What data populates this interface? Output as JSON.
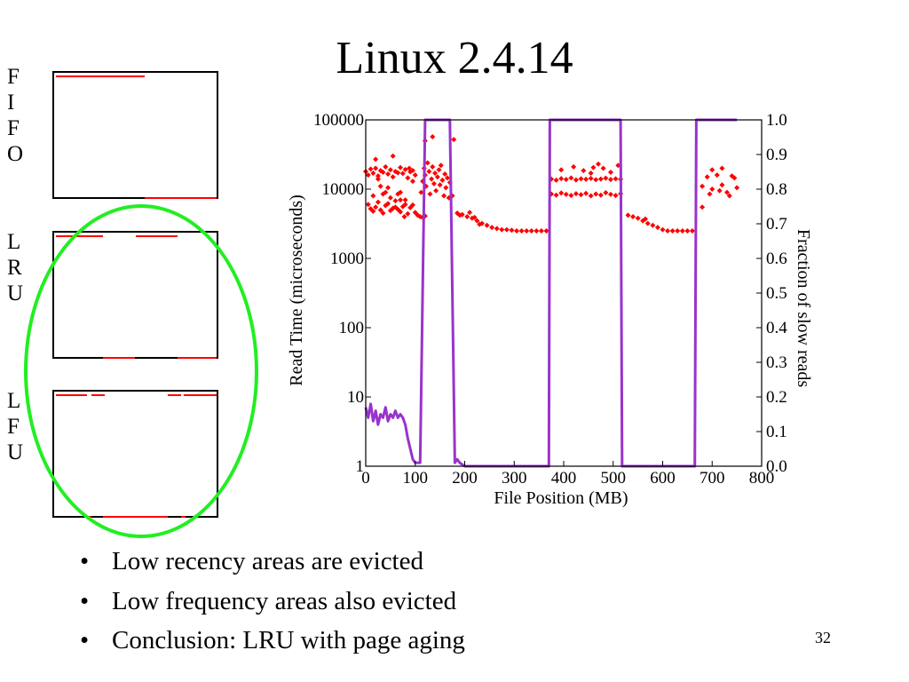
{
  "slide": {
    "title": "Linux 2.4.14",
    "page_number": "32"
  },
  "policies": [
    {
      "letters": [
        "F",
        "I",
        "F",
        "O"
      ],
      "name": "FIFO",
      "segments": [
        [
          0.0,
          0.01,
          0.56
        ],
        [
          0.98,
          0.56,
          1.0
        ]
      ]
    },
    {
      "letters": [
        "L",
        "R",
        "U"
      ],
      "name": "LRU",
      "segments": [
        [
          0.0,
          0.01,
          0.3
        ],
        [
          0.0,
          0.5,
          0.76
        ],
        [
          0.98,
          0.3,
          0.5
        ],
        [
          0.98,
          0.76,
          1.0
        ]
      ]
    },
    {
      "letters": [
        "L",
        "F",
        "U"
      ],
      "name": "LFU",
      "segments": [
        [
          0.0,
          0.01,
          0.2
        ],
        [
          0.0,
          0.23,
          0.31
        ],
        [
          0.0,
          0.7,
          0.78
        ],
        [
          0.0,
          0.8,
          1.0
        ],
        [
          0.98,
          0.2,
          0.23
        ],
        [
          0.98,
          0.3,
          0.7
        ],
        [
          0.98,
          0.78,
          0.81
        ]
      ]
    }
  ],
  "bullets": [
    "Low recency areas are evicted",
    "Low frequency areas also evicted",
    "Conclusion:  LRU with page aging"
  ],
  "colors": {
    "scatter": "#ff0000",
    "fraction_line": "#9933cc",
    "highlight_ellipse": "#22ee22"
  },
  "chart_data": {
    "type": "scatter",
    "xlabel": "File Position (MB)",
    "ylabel": "Read Time (microseconds)",
    "y2label": "Fraction of slow reads",
    "xlim": [
      0,
      800
    ],
    "ylim": [
      1,
      100000
    ],
    "y_scale": "log",
    "y2lim": [
      0,
      1
    ],
    "x_ticks": [
      "0",
      "100",
      "200",
      "300",
      "400",
      "500",
      "600",
      "700",
      "800"
    ],
    "y_ticks": [
      "1",
      "10",
      "100",
      "1000",
      "10000",
      "100000"
    ],
    "y2_ticks": [
      "0.0",
      "0.1",
      "0.2",
      "0.3",
      "0.4",
      "0.5",
      "0.6",
      "0.7",
      "0.8",
      "0.9",
      "1.0"
    ],
    "grid": false,
    "legend": "none",
    "series": [
      {
        "kind": "scatter",
        "points": [
          [
            0,
            18000
          ],
          [
            5,
            16000
          ],
          [
            10,
            19500
          ],
          [
            15,
            17000
          ],
          [
            20,
            20000
          ],
          [
            25,
            15500
          ],
          [
            30,
            18500
          ],
          [
            35,
            17500
          ],
          [
            40,
            21000
          ],
          [
            45,
            16500
          ],
          [
            50,
            19000
          ],
          [
            55,
            15000
          ],
          [
            60,
            18000
          ],
          [
            65,
            17200
          ],
          [
            70,
            20500
          ],
          [
            75,
            16800
          ],
          [
            80,
            19200
          ],
          [
            85,
            14500
          ],
          [
            90,
            17800
          ],
          [
            95,
            18600
          ],
          [
            100,
            16000
          ],
          [
            30,
            11000
          ],
          [
            45,
            10500
          ],
          [
            60,
            5500
          ],
          [
            70,
            9000
          ],
          [
            80,
            7000
          ],
          [
            95,
            13000
          ],
          [
            78,
            4000
          ],
          [
            120,
            50000
          ],
          [
            135,
            57000
          ],
          [
            178,
            52000
          ],
          [
            112,
            9000
          ],
          [
            115,
            13000
          ],
          [
            118,
            20000
          ],
          [
            120,
            16000
          ],
          [
            122,
            11000
          ],
          [
            125,
            24000
          ],
          [
            128,
            18000
          ],
          [
            130,
            8500
          ],
          [
            133,
            14000
          ],
          [
            135,
            21000
          ],
          [
            138,
            12000
          ],
          [
            140,
            17000
          ],
          [
            142,
            9500
          ],
          [
            145,
            15000
          ],
          [
            148,
            19000
          ],
          [
            150,
            11500
          ],
          [
            152,
            22000
          ],
          [
            155,
            13500
          ],
          [
            158,
            8000
          ],
          [
            160,
            16500
          ],
          [
            162,
            10500
          ],
          [
            165,
            14500
          ],
          [
            168,
            7500
          ],
          [
            170,
            12500
          ],
          [
            175,
            8000
          ],
          [
            375,
            14000
          ],
          [
            385,
            13500
          ],
          [
            395,
            14200
          ],
          [
            405,
            13800
          ],
          [
            415,
            14500
          ],
          [
            425,
            13600
          ],
          [
            435,
            14100
          ],
          [
            445,
            13900
          ],
          [
            455,
            14300
          ],
          [
            465,
            13700
          ],
          [
            475,
            14000
          ],
          [
            485,
            14400
          ],
          [
            495,
            13800
          ],
          [
            505,
            14100
          ],
          [
            515,
            13900
          ],
          [
            375,
            8500
          ],
          [
            385,
            8200
          ],
          [
            395,
            8800
          ],
          [
            405,
            8400
          ],
          [
            415,
            8100
          ],
          [
            425,
            8600
          ],
          [
            435,
            8300
          ],
          [
            445,
            8700
          ],
          [
            455,
            8000
          ],
          [
            465,
            8500
          ],
          [
            475,
            8200
          ],
          [
            485,
            8900
          ],
          [
            495,
            8400
          ],
          [
            505,
            8100
          ],
          [
            515,
            8600
          ],
          [
            395,
            19000
          ],
          [
            420,
            21000
          ],
          [
            440,
            18500
          ],
          [
            455,
            17000
          ],
          [
            480,
            20000
          ],
          [
            495,
            17500
          ],
          [
            510,
            22000
          ],
          [
            470,
            23000
          ],
          [
            460,
            20500
          ],
          [
            680,
            11000
          ],
          [
            690,
            15000
          ],
          [
            700,
            10000
          ],
          [
            710,
            16000
          ],
          [
            720,
            11500
          ],
          [
            730,
            9000
          ],
          [
            740,
            15500
          ],
          [
            750,
            10500
          ],
          [
            695,
            8500
          ],
          [
            715,
            9500
          ],
          [
            735,
            8000
          ],
          [
            745,
            14500
          ],
          [
            700,
            19000
          ],
          [
            720,
            20000
          ],
          [
            680,
            5500
          ],
          [
            5,
            6000
          ],
          [
            10,
            5200
          ],
          [
            15,
            4800
          ],
          [
            20,
            5500
          ],
          [
            25,
            6500
          ],
          [
            30,
            5000
          ],
          [
            35,
            4500
          ],
          [
            40,
            5800
          ],
          [
            45,
            6200
          ],
          [
            50,
            4900
          ],
          [
            55,
            5300
          ],
          [
            60,
            6800
          ],
          [
            65,
            5100
          ],
          [
            70,
            4700
          ],
          [
            75,
            5600
          ],
          [
            80,
            6000
          ],
          [
            85,
            4400
          ],
          [
            90,
            5400
          ],
          [
            95,
            5900
          ],
          [
            100,
            4600
          ],
          [
            105,
            4200
          ],
          [
            110,
            4000
          ],
          [
            115,
            3900
          ],
          [
            120,
            4100
          ],
          [
            15,
            8000
          ],
          [
            25,
            14000
          ],
          [
            40,
            9000
          ],
          [
            55,
            30000
          ],
          [
            20,
            27000
          ],
          [
            35,
            8500
          ],
          [
            50,
            7500
          ],
          [
            65,
            8500
          ],
          [
            88,
            20000
          ],
          [
            70,
            7000
          ],
          [
            185,
            4500
          ],
          [
            195,
            4300
          ],
          [
            205,
            4000
          ],
          [
            215,
            3800
          ],
          [
            225,
            3500
          ],
          [
            235,
            3200
          ],
          [
            245,
            3000
          ],
          [
            255,
            2800
          ],
          [
            265,
            2700
          ],
          [
            275,
            2600
          ],
          [
            285,
            2600
          ],
          [
            295,
            2550
          ],
          [
            305,
            2500
          ],
          [
            315,
            2500
          ],
          [
            325,
            2500
          ],
          [
            335,
            2500
          ],
          [
            345,
            2500
          ],
          [
            355,
            2500
          ],
          [
            365,
            2500
          ],
          [
            210,
            4600
          ],
          [
            220,
            3900
          ],
          [
            230,
            3100
          ],
          [
            190,
            4200
          ],
          [
            530,
            4200
          ],
          [
            540,
            4000
          ],
          [
            550,
            3800
          ],
          [
            560,
            3500
          ],
          [
            570,
            3200
          ],
          [
            580,
            3000
          ],
          [
            590,
            2800
          ],
          [
            600,
            2600
          ],
          [
            610,
            2500
          ],
          [
            620,
            2500
          ],
          [
            630,
            2500
          ],
          [
            640,
            2500
          ],
          [
            650,
            2500
          ],
          [
            660,
            2500
          ],
          [
            565,
            3700
          ]
        ]
      },
      {
        "kind": "line",
        "axis": "y2",
        "points": [
          [
            0,
            0.17
          ],
          [
            5,
            0.14
          ],
          [
            10,
            0.18
          ],
          [
            15,
            0.13
          ],
          [
            20,
            0.16
          ],
          [
            25,
            0.12
          ],
          [
            30,
            0.15
          ],
          [
            35,
            0.14
          ],
          [
            40,
            0.17
          ],
          [
            45,
            0.13
          ],
          [
            50,
            0.15
          ],
          [
            55,
            0.14
          ],
          [
            60,
            0.16
          ],
          [
            65,
            0.14
          ],
          [
            70,
            0.15
          ],
          [
            75,
            0.14
          ],
          [
            80,
            0.12
          ],
          [
            85,
            0.08
          ],
          [
            90,
            0.05
          ],
          [
            95,
            0.02
          ],
          [
            100,
            0.01
          ],
          [
            110,
            0.01
          ],
          [
            115,
            0.5
          ],
          [
            120,
            1.0
          ],
          [
            170,
            1.0
          ],
          [
            175,
            0.5
          ],
          [
            180,
            0.01
          ],
          [
            185,
            0.02
          ],
          [
            190,
            0.01
          ],
          [
            200,
            0.0
          ],
          [
            370,
            0.0
          ],
          [
            372,
            1.0
          ],
          [
            515,
            1.0
          ],
          [
            518,
            0.0
          ],
          [
            665,
            0.0
          ],
          [
            668,
            1.0
          ],
          [
            750,
            1.0
          ]
        ]
      }
    ]
  }
}
